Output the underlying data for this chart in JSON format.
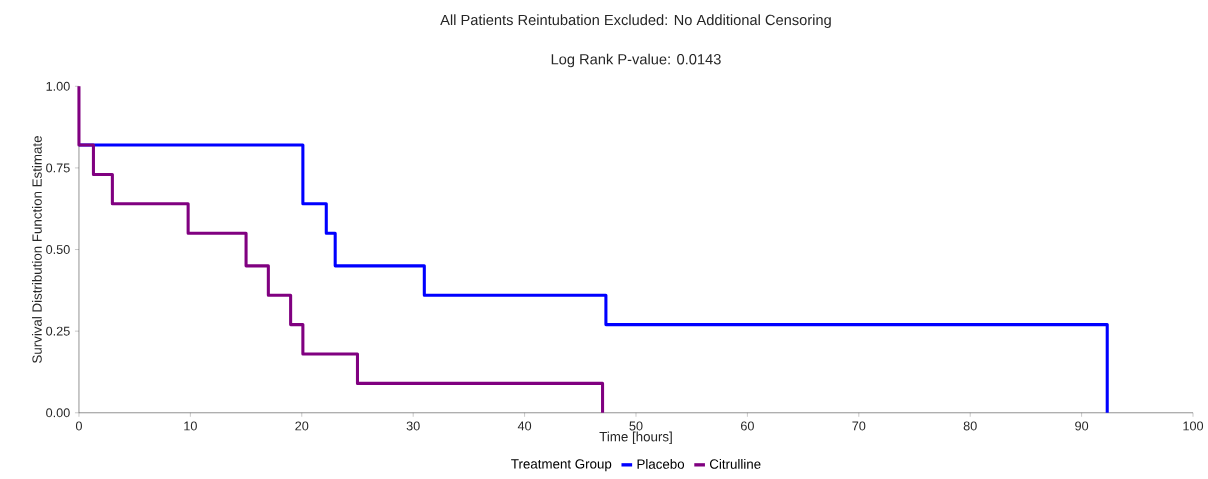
{
  "chart_data": {
    "type": "step",
    "title": "All Patients Reintubation Excluded: No Additional Censoring",
    "subtitle": "Log Rank P-value: 0.0143",
    "xlabel": "Time [hours]",
    "ylabel": "Survival Distribution Function Estimate",
    "legend_title": "Treatment Group",
    "series": [
      {
        "name": "Placebo",
        "color": "#0000ff",
        "x": [
          0,
          20.1,
          22.2,
          23,
          31,
          47.3,
          92.3
        ],
        "values": [
          0.82,
          0.64,
          0.55,
          0.45,
          0.36,
          0.27,
          0
        ]
      },
      {
        "name": "Citrulline",
        "color": "#800080",
        "x": [
          0,
          0,
          1.3,
          3,
          9.8,
          15,
          17,
          19,
          20.1,
          25,
          47
        ],
        "values": [
          1,
          0.82,
          0.73,
          0.64,
          0.55,
          0.45,
          0.36,
          0.27,
          0.18,
          0.09,
          0
        ]
      }
    ],
    "xlim": [
      0,
      100
    ],
    "ylim": [
      0,
      1
    ],
    "xticks": [
      0,
      10,
      20,
      30,
      40,
      50,
      60,
      70,
      80,
      90,
      100
    ],
    "yticks": [
      {
        "value": 0,
        "label": "0.00"
      },
      {
        "value": 0.25,
        "label": "0.25"
      },
      {
        "value": 0.5,
        "label": "0.50"
      },
      {
        "value": 0.75,
        "label": "0.75"
      },
      {
        "value": 1,
        "label": "1.00"
      }
    ],
    "grid": false,
    "legend": "bottom",
    "marker": "none",
    "line_style": "solid"
  }
}
